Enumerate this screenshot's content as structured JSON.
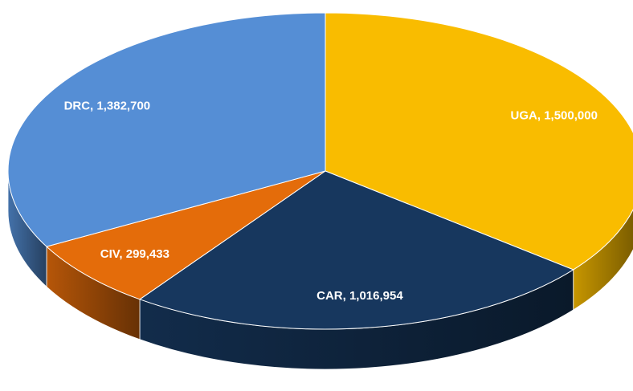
{
  "chart_data": {
    "type": "pie",
    "values": [
      1500000,
      1016954,
      299433,
      1382700
    ],
    "value_labels": [
      "UGA, 1,500,000",
      "CAR, 1,016,954",
      "CIV, 299,433",
      "DRC, 1,382,700"
    ],
    "colors": [
      "#f9bc00",
      "#17375e",
      "#e46c0a",
      "#558ed5"
    ]
  }
}
